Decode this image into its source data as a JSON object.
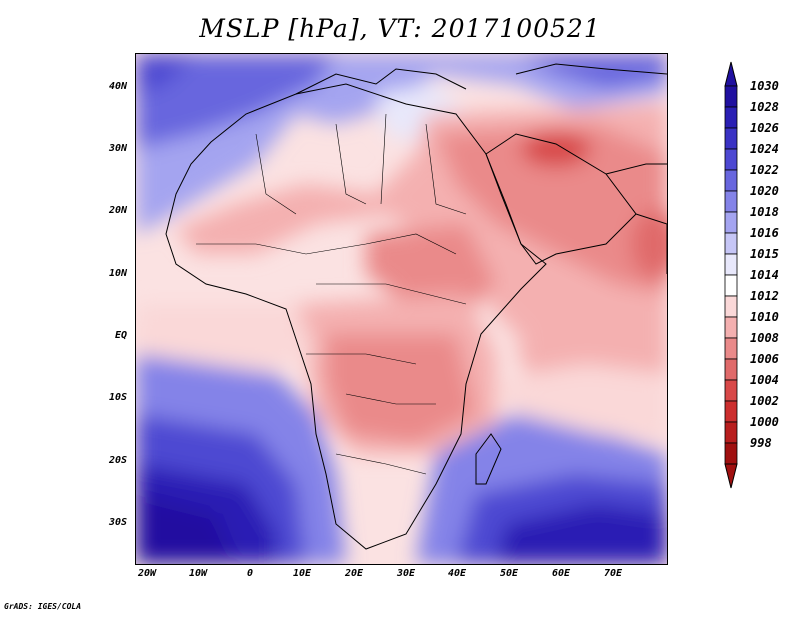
{
  "title": "MSLP [hPa], VT: 2017100521",
  "credit": "GrADS: IGES/COLA",
  "lat_labels": [
    "40N",
    "30N",
    "20N",
    "10N",
    "EQ",
    "10S",
    "20S",
    "30S"
  ],
  "lon_labels": [
    "20W",
    "10W",
    "0",
    "10E",
    "20E",
    "30E",
    "40E",
    "50E",
    "60E",
    "70E"
  ],
  "colorbar": {
    "levels": [
      "1030",
      "1028",
      "1026",
      "1024",
      "1022",
      "1020",
      "1018",
      "1016",
      "1015",
      "1014",
      "1012",
      "1010",
      "1008",
      "1006",
      "1004",
      "1002",
      "1000",
      "998"
    ],
    "colors": [
      "#2010a0",
      "#2a1fb4",
      "#3a32c4",
      "#4d48d2",
      "#6866de",
      "#8483e8",
      "#a4a4f0",
      "#c6c6f6",
      "#e8e8fb",
      "#ffffff",
      "#fad8d8",
      "#f4b0b0",
      "#ea8a8a",
      "#e06a6a",
      "#d84848",
      "#cc2e2e",
      "#b81e1e",
      "#a01010"
    ]
  }
}
